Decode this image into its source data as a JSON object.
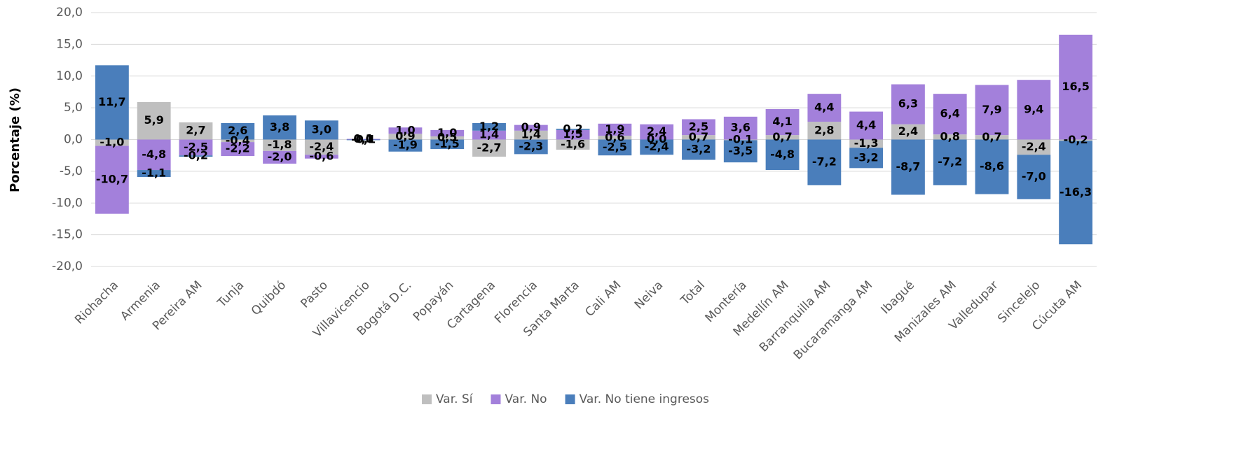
{
  "chart_data": {
    "type": "bar",
    "stacked": true,
    "y_label": "Porcentaje (%)",
    "categories": [
      "Riohacha",
      "Armenia",
      "Pereira AM",
      "Tunja",
      "Quibdó",
      "Pasto",
      "Villavicencio",
      "Bogotá D.C.",
      "Popayán",
      "Cartagena",
      "Florencia",
      "Santa Marta",
      "Cali AM",
      "Neiva",
      "Total",
      "Montería",
      "Medellín AM",
      "Barranquilla AM",
      "Bucaramanga AM",
      "Ibagué",
      "Manizales AM",
      "Valledupar",
      "Sincelejo",
      "Cúcuta AM"
    ],
    "series": [
      {
        "name": "Var. Sí",
        "color": "#bfbfbf",
        "values": [
          -1.0,
          5.9,
          2.7,
          -0.4,
          -1.8,
          -2.4,
          0.0,
          0.9,
          0.5,
          -2.7,
          1.4,
          -1.6,
          0.6,
          0.0,
          0.7,
          -0.1,
          0.7,
          2.8,
          -1.3,
          2.4,
          0.8,
          0.7,
          -2.4,
          -0.2
        ],
        "value_labels": [
          "-1,0",
          "5,9",
          "2,7",
          "-0,4",
          "-1,8",
          "-2,4",
          "0,0",
          "0,9",
          "0,5",
          "-2,7",
          "1,4",
          "-1,6",
          "0,6",
          "0,0",
          "0,7",
          "-0,1",
          "0,7",
          "2,8",
          "-1,3",
          "2,4",
          "0,8",
          "0,7",
          "-2,4",
          "-0,2"
        ]
      },
      {
        "name": "Var. No",
        "color": "#a380db",
        "values": [
          -10.7,
          -4.8,
          -2.5,
          -2.2,
          -2.0,
          -0.6,
          0.1,
          1.0,
          1.0,
          1.4,
          0.9,
          1.5,
          1.9,
          2.4,
          2.5,
          3.6,
          4.1,
          4.4,
          4.4,
          6.3,
          6.4,
          7.9,
          9.4,
          16.5
        ],
        "value_labels": [
          "-10,7",
          "-4,8",
          "-2,5",
          "-2,2",
          "-2,0",
          "-0,6",
          "0,1",
          "1,0",
          "1,0",
          "1,4",
          "0,9",
          "1,5",
          "1,9",
          "2,4",
          "2,5",
          "3,6",
          "4,1",
          "4,4",
          "4,4",
          "6,3",
          "6,4",
          "7,9",
          "9,4",
          "16,5"
        ]
      },
      {
        "name": "Var. No tiene ingresos",
        "color": "#4a7ebb",
        "values": [
          11.7,
          -1.1,
          -0.2,
          2.6,
          3.8,
          3.0,
          -0.1,
          -1.9,
          -1.5,
          1.2,
          -2.3,
          0.2,
          -2.5,
          -2.4,
          -3.2,
          -3.5,
          -4.8,
          -7.2,
          -3.2,
          -8.7,
          -7.2,
          -8.6,
          -7.0,
          -16.3
        ],
        "value_labels": [
          "11,7",
          "-1,1",
          "-0,2",
          "2,6",
          "3,8",
          "3,0",
          "-0,1",
          "-1,9",
          "-1,5",
          "1,2",
          "-2,3",
          "0,2",
          "-2,5",
          "-2,4",
          "-3,2",
          "-3,5",
          "-4,8",
          "-7,2",
          "-3,2",
          "-8,7",
          "-7,2",
          "-8,6",
          "-7,0",
          "-16,3"
        ]
      }
    ],
    "ylim": [
      -20,
      20
    ],
    "yticks": [
      {
        "value": -20,
        "label": "-20,0"
      },
      {
        "value": -15,
        "label": "-15,0"
      },
      {
        "value": -10,
        "label": "-10,0"
      },
      {
        "value": -5,
        "label": "-5,0"
      },
      {
        "value": 0,
        "label": "0,0"
      },
      {
        "value": 5,
        "label": "5,0"
      },
      {
        "value": 10,
        "label": "10,0"
      },
      {
        "value": 15,
        "label": "15,0"
      },
      {
        "value": 20,
        "label": "20,0"
      }
    ],
    "grid": true,
    "legend": "bottom"
  }
}
